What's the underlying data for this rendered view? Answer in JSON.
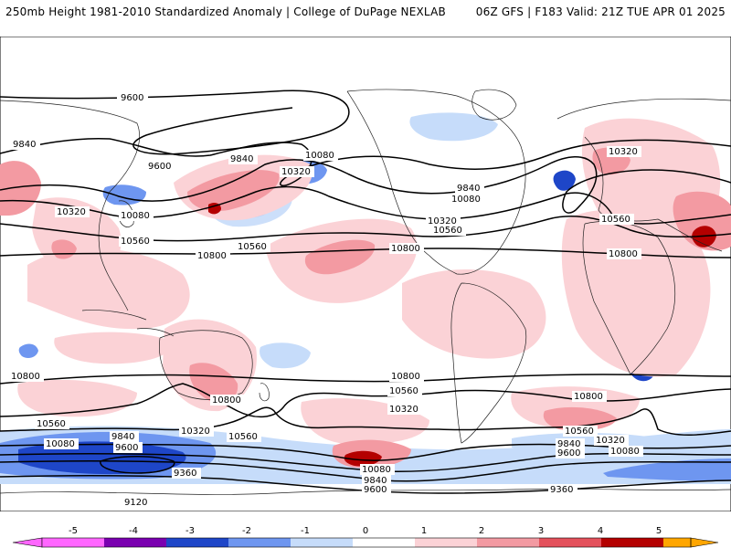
{
  "header": {
    "left": "250mb Height 1981-2010 Standardized Anomaly | College of DuPage NEXLAB",
    "right": "06Z GFS | F183 Valid: 21Z TUE APR 01 2025"
  },
  "map": {
    "projection": "cylindrical global",
    "contour_labels": [
      "9600",
      "9840",
      "10080",
      "10320",
      "10560",
      "10800",
      "9360",
      "9120"
    ],
    "anomaly_colors": {
      "neg5": "#ff66ff",
      "neg4": "#7a00b0",
      "neg3": "#1e46c8",
      "neg2": "#6e96f0",
      "neg1": "#c6dcfa",
      "pos1": "#fbd2d6",
      "pos2": "#f39aa2",
      "pos3": "#e4515c",
      "pos4": "#b40000",
      "pos5": "#ffa600"
    }
  },
  "colorbar": {
    "ticks": [
      "-5",
      "-4",
      "-3",
      "-2",
      "-1",
      "0",
      "1",
      "2",
      "3",
      "4",
      "5"
    ]
  }
}
